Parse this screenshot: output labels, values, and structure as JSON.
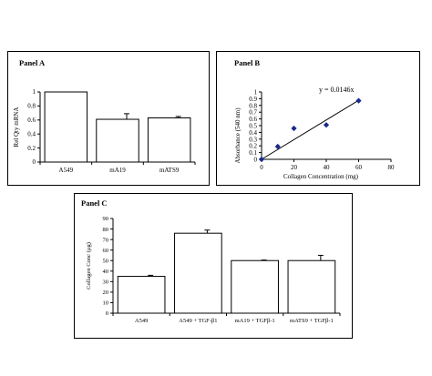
{
  "chart_data": [
    {
      "panel_label": "Panel A",
      "type": "bar",
      "ylabel": "Rel Qty mRNA",
      "xlabel": "",
      "ylim": [
        0,
        1
      ],
      "yticks": [
        0,
        0.2,
        0.4,
        0.6,
        0.8,
        1
      ],
      "ytick_labels": [
        "0",
        "0.2",
        "0.4",
        "0.6",
        "0.8",
        "1"
      ],
      "categories": [
        "A549",
        "mA19",
        "mATS9"
      ],
      "values": [
        1.0,
        0.61,
        0.63
      ],
      "errors": [
        0,
        0.08,
        0.02
      ]
    },
    {
      "panel_label": "Panel B",
      "type": "scatter",
      "xlabel": "Collagen Concentration (mg)",
      "ylabel": "Absorbance (540 nm)",
      "xlim": [
        0,
        80
      ],
      "ylim": [
        0,
        1
      ],
      "xticks": [
        0,
        20,
        40,
        60,
        80
      ],
      "xtick_labels": [
        "0",
        "20",
        "40",
        "60",
        "80"
      ],
      "yticks": [
        0,
        0.1,
        0.2,
        0.3,
        0.4,
        0.5,
        0.6,
        0.7,
        0.8,
        0.9,
        1
      ],
      "ytick_labels": [
        "0",
        "0.1",
        "0.2",
        "0.3",
        "0.4",
        "0.5",
        "0.6",
        "0.7",
        "0.8",
        "0.9",
        "1"
      ],
      "points": [
        {
          "x": 0,
          "y": 0
        },
        {
          "x": 10,
          "y": 0.19
        },
        {
          "x": 20,
          "y": 0.46
        },
        {
          "x": 40,
          "y": 0.51
        },
        {
          "x": 60,
          "y": 0.87
        }
      ],
      "trendline": {
        "slope": 0.0146,
        "x_range": [
          0,
          60
        ]
      },
      "equation": "y = 0.0146x",
      "marker_color": "#1a2a8c"
    },
    {
      "panel_label": "Panel C",
      "type": "bar",
      "ylabel": "Collagen Conc (µg)",
      "xlabel": "",
      "ylim": [
        0,
        90
      ],
      "yticks": [
        0,
        10,
        20,
        30,
        40,
        50,
        60,
        70,
        80,
        90
      ],
      "ytick_labels": [
        "0",
        "10",
        "20",
        "30",
        "40",
        "50",
        "60",
        "70",
        "80",
        "90"
      ],
      "categories": [
        "A549",
        "A549 + TGF-β1",
        "mA19 + TGFβ-1",
        "mATS9 + TGFβ-1"
      ],
      "values": [
        35,
        76,
        50,
        50
      ],
      "errors": [
        1,
        3,
        0.5,
        5
      ]
    }
  ]
}
